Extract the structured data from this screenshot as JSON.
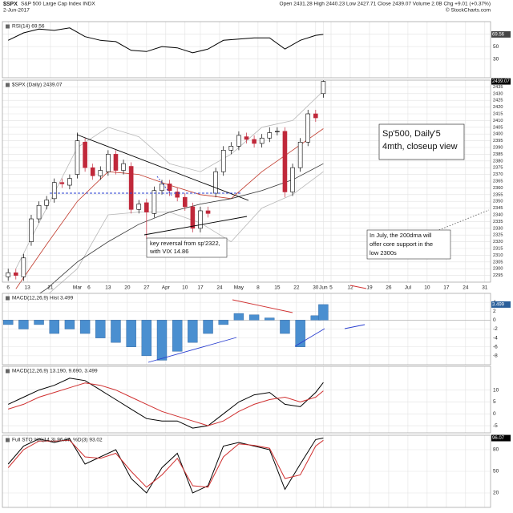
{
  "header": {
    "symbol": "$SPX",
    "description": "S&P 500 Large Cap Index INDX",
    "date": "2-Jun-2017",
    "quote": "Open 2431.28 High 2440.23 Low 2427.71 Close 2439.07 Volume 2.0B Chg +9.01 (+0.37%)",
    "credit": "© StockCharts.com"
  },
  "chart_data": [
    {
      "type": "line",
      "legend": "RSI(14) 69.56",
      "x": [
        1,
        5,
        9,
        13,
        17,
        21,
        25,
        29,
        33,
        37,
        41,
        45,
        49,
        53,
        57,
        61,
        65,
        69,
        73,
        77,
        81,
        83
      ],
      "series": [
        {
          "name": "RSI(14)",
          "color": "#000000",
          "values": [
            60,
            72,
            78,
            76,
            80,
            66,
            60,
            58,
            44,
            42,
            50,
            48,
            40,
            46,
            60,
            62,
            64,
            64,
            46,
            60,
            68,
            69.56
          ]
        }
      ],
      "xlim": [
        -0.5,
        126.5
      ],
      "ylim": [
        0,
        90
      ],
      "yticks": [
        30,
        50,
        70
      ]
    },
    {
      "type": "candlestick",
      "legend": "$SPX (Daily) 2439.07",
      "x": [
        1,
        3,
        5,
        7,
        9,
        11,
        13,
        15,
        17,
        19,
        21,
        23,
        25,
        27,
        29,
        31,
        33,
        35,
        37,
        39,
        41,
        43,
        45,
        47,
        49,
        51,
        53,
        55,
        57,
        59,
        61,
        63,
        65,
        67,
        69,
        71,
        73,
        75,
        77,
        79,
        81,
        83
      ],
      "open": [
        2294,
        2297,
        2294,
        2320,
        2337,
        2347,
        2352,
        2364,
        2362,
        2370,
        2394,
        2375,
        2369,
        2372,
        2385,
        2373,
        2376,
        2344,
        2349,
        2341,
        2358,
        2363,
        2357,
        2353,
        2346,
        2330,
        2343,
        2356,
        2372,
        2388,
        2391,
        2398,
        2396,
        2393,
        2397,
        2402,
        2402,
        2357,
        2375,
        2394,
        2415,
        2430
      ],
      "high": [
        2300,
        2300,
        2311,
        2340,
        2350,
        2354,
        2367,
        2367,
        2370,
        2401,
        2397,
        2378,
        2376,
        2388,
        2388,
        2381,
        2379,
        2351,
        2352,
        2361,
        2366,
        2366,
        2360,
        2356,
        2349,
        2346,
        2346,
        2375,
        2391,
        2394,
        2402,
        2401,
        2399,
        2400,
        2405,
        2405,
        2405,
        2378,
        2397,
        2418,
        2418,
        2440
      ],
      "low": [
        2291,
        2292,
        2291,
        2317,
        2334,
        2344,
        2349,
        2360,
        2359,
        2367,
        2372,
        2366,
        2366,
        2369,
        2370,
        2370,
        2341,
        2341,
        2322,
        2338,
        2355,
        2354,
        2350,
        2343,
        2327,
        2327,
        2338,
        2353,
        2369,
        2385,
        2388,
        2393,
        2390,
        2390,
        2394,
        2399,
        2353,
        2354,
        2372,
        2391,
        2409,
        2427
      ],
      "close": [
        2297,
        2295,
        2308,
        2337,
        2347,
        2351,
        2364,
        2363,
        2367,
        2395,
        2375,
        2369,
        2373,
        2385,
        2373,
        2378,
        2344,
        2348,
        2342,
        2358,
        2363,
        2358,
        2353,
        2346,
        2330,
        2343,
        2341,
        2372,
        2388,
        2391,
        2399,
        2396,
        2393,
        2397,
        2401,
        2402,
        2357,
        2375,
        2394,
        2415,
        2412,
        2439.07
      ],
      "overlays": [
        {
          "name": "BB(20,2.0) upper",
          "color": "#b8b8b8",
          "x": [
            3,
            11,
            19,
            27,
            35,
            43,
            51,
            59,
            67,
            75,
            83
          ],
          "values": [
            2300,
            2345,
            2390,
            2405,
            2398,
            2378,
            2372,
            2385,
            2405,
            2410,
            2432
          ]
        },
        {
          "name": "BB(20,2.0) lower",
          "color": "#b8b8b8",
          "x": [
            3,
            11,
            19,
            27,
            35,
            43,
            51,
            59,
            67,
            75,
            83
          ],
          "values": [
            2270,
            2280,
            2300,
            2340,
            2342,
            2342,
            2334,
            2320,
            2345,
            2355,
            2372
          ]
        },
        {
          "name": "MA(20)",
          "color": "#c0392b",
          "x": [
            3,
            11,
            19,
            27,
            35,
            43,
            51,
            59,
            67,
            75,
            83
          ],
          "values": [
            2285,
            2318,
            2350,
            2372,
            2370,
            2362,
            2355,
            2352,
            2372,
            2388,
            2404
          ]
        },
        {
          "name": "MA(50)",
          "color": "#333333",
          "x": [
            3,
            11,
            19,
            27,
            35,
            43,
            51,
            59,
            67,
            75,
            83
          ],
          "values": [
            2270,
            2285,
            2305,
            2320,
            2333,
            2342,
            2348,
            2352,
            2358,
            2366,
            2378
          ]
        }
      ],
      "xlim": [
        -0.5,
        126.5
      ],
      "ylim": [
        2290,
        2440
      ],
      "yticks": [
        2295,
        2300,
        2305,
        2310,
        2315,
        2320,
        2325,
        2330,
        2335,
        2340,
        2345,
        2350,
        2355,
        2360,
        2365,
        2370,
        2375,
        2380,
        2385,
        2390,
        2395,
        2400,
        2405,
        2410,
        2415,
        2420,
        2425,
        2430,
        2435
      ],
      "xticks": [
        {
          "value": 1,
          "label": "6"
        },
        {
          "value": 6,
          "label": "13"
        },
        {
          "value": 12,
          "label": "21"
        },
        {
          "value": 19,
          "label": "Mar"
        },
        {
          "value": 22,
          "label": "6"
        },
        {
          "value": 27,
          "label": "13"
        },
        {
          "value": 32,
          "label": "20"
        },
        {
          "value": 37,
          "label": "27"
        },
        {
          "value": 42,
          "label": "Apr"
        },
        {
          "value": 47,
          "label": "10"
        },
        {
          "value": 51,
          "label": "17"
        },
        {
          "value": 56,
          "label": "24"
        },
        {
          "value": 61,
          "label": "May"
        },
        {
          "value": 66,
          "label": "8"
        },
        {
          "value": 71,
          "label": "15"
        },
        {
          "value": 76,
          "label": "22"
        },
        {
          "value": 81,
          "label": "30"
        },
        {
          "value": 83,
          "label": "Jun"
        },
        {
          "value": 85,
          "label": "5"
        },
        {
          "value": 90,
          "label": "12"
        },
        {
          "value": 95,
          "label": "19"
        },
        {
          "value": 100,
          "label": "26"
        },
        {
          "value": 105,
          "label": "Jul"
        },
        {
          "value": 110,
          "label": "10"
        },
        {
          "value": 115,
          "label": "17"
        },
        {
          "value": 120,
          "label": "24"
        },
        {
          "value": 125,
          "label": "31"
        }
      ],
      "annotations": [
        "Sp'500, Daily'5",
        "4mth, closeup view",
        "key reversal from sp'2322,",
        "with VIX 14.86",
        "In July, the 200dma will",
        "offer core support in the",
        "low 2300s"
      ]
    },
    {
      "type": "bar",
      "legend": "MACD(12,26,9) Hist 3.499",
      "color": "#4a8fd0",
      "x": [
        1,
        5,
        9,
        13,
        17,
        21,
        25,
        29,
        33,
        37,
        41,
        45,
        49,
        53,
        57,
        61,
        65,
        69,
        73,
        77,
        81,
        83
      ],
      "values": [
        -1,
        -2,
        -1,
        -3,
        -2,
        -3,
        -4,
        -5,
        -6,
        -8,
        -9,
        -7,
        -5,
        -3,
        -1,
        1.5,
        1.2,
        0.5,
        -3,
        -6,
        1,
        3.499
      ],
      "xlim": [
        -0.5,
        126.5
      ],
      "ylim": [
        -10,
        6
      ],
      "yticks": [
        -8,
        -6,
        -4,
        -2,
        0,
        2,
        4
      ]
    },
    {
      "type": "line",
      "legend": "MACD(12,26,9) 13.190, 9.690, 3.499",
      "x": [
        1,
        5,
        9,
        13,
        17,
        21,
        25,
        29,
        33,
        37,
        41,
        45,
        49,
        53,
        57,
        61,
        65,
        69,
        73,
        77,
        81,
        83
      ],
      "series": [
        {
          "name": "MACD",
          "color": "#000000",
          "values": [
            4,
            7,
            10,
            12,
            15,
            14,
            10,
            6,
            2,
            -2,
            -3,
            -3,
            -6,
            -5,
            0,
            5,
            8,
            9,
            4,
            3,
            9,
            13.19
          ]
        },
        {
          "name": "Signal",
          "color": "#d03030",
          "values": [
            2,
            4,
            7,
            9,
            11,
            13,
            12,
            10,
            7,
            4,
            1,
            -1,
            -3,
            -5,
            -3,
            1,
            4,
            6,
            7,
            5,
            7,
            9.69
          ]
        }
      ],
      "xlim": [
        -0.5,
        126.5
      ],
      "ylim": [
        -8,
        20
      ],
      "yticks": [
        -5,
        0,
        5,
        10
      ]
    },
    {
      "type": "line",
      "legend": "Full STO %K(14,3) 96.07, %D(3) 93.02",
      "x": [
        1,
        5,
        9,
        13,
        17,
        21,
        25,
        29,
        33,
        37,
        41,
        45,
        49,
        53,
        57,
        61,
        65,
        69,
        73,
        77,
        81,
        83
      ],
      "series": [
        {
          "name": "%K",
          "color": "#000000",
          "values": [
            60,
            85,
            95,
            90,
            95,
            60,
            70,
            80,
            40,
            20,
            55,
            75,
            20,
            30,
            85,
            90,
            85,
            80,
            25,
            60,
            94,
            96.07
          ]
        },
        {
          "name": "%D",
          "color": "#d03030",
          "values": [
            55,
            80,
            92,
            92,
            93,
            70,
            68,
            75,
            50,
            28,
            45,
            68,
            30,
            28,
            70,
            88,
            86,
            82,
            40,
            45,
            85,
            93.02
          ]
        }
      ],
      "xlim": [
        -0.5,
        126.5
      ],
      "ylim": [
        0,
        100
      ],
      "yticks": [
        20,
        50,
        80
      ]
    }
  ]
}
